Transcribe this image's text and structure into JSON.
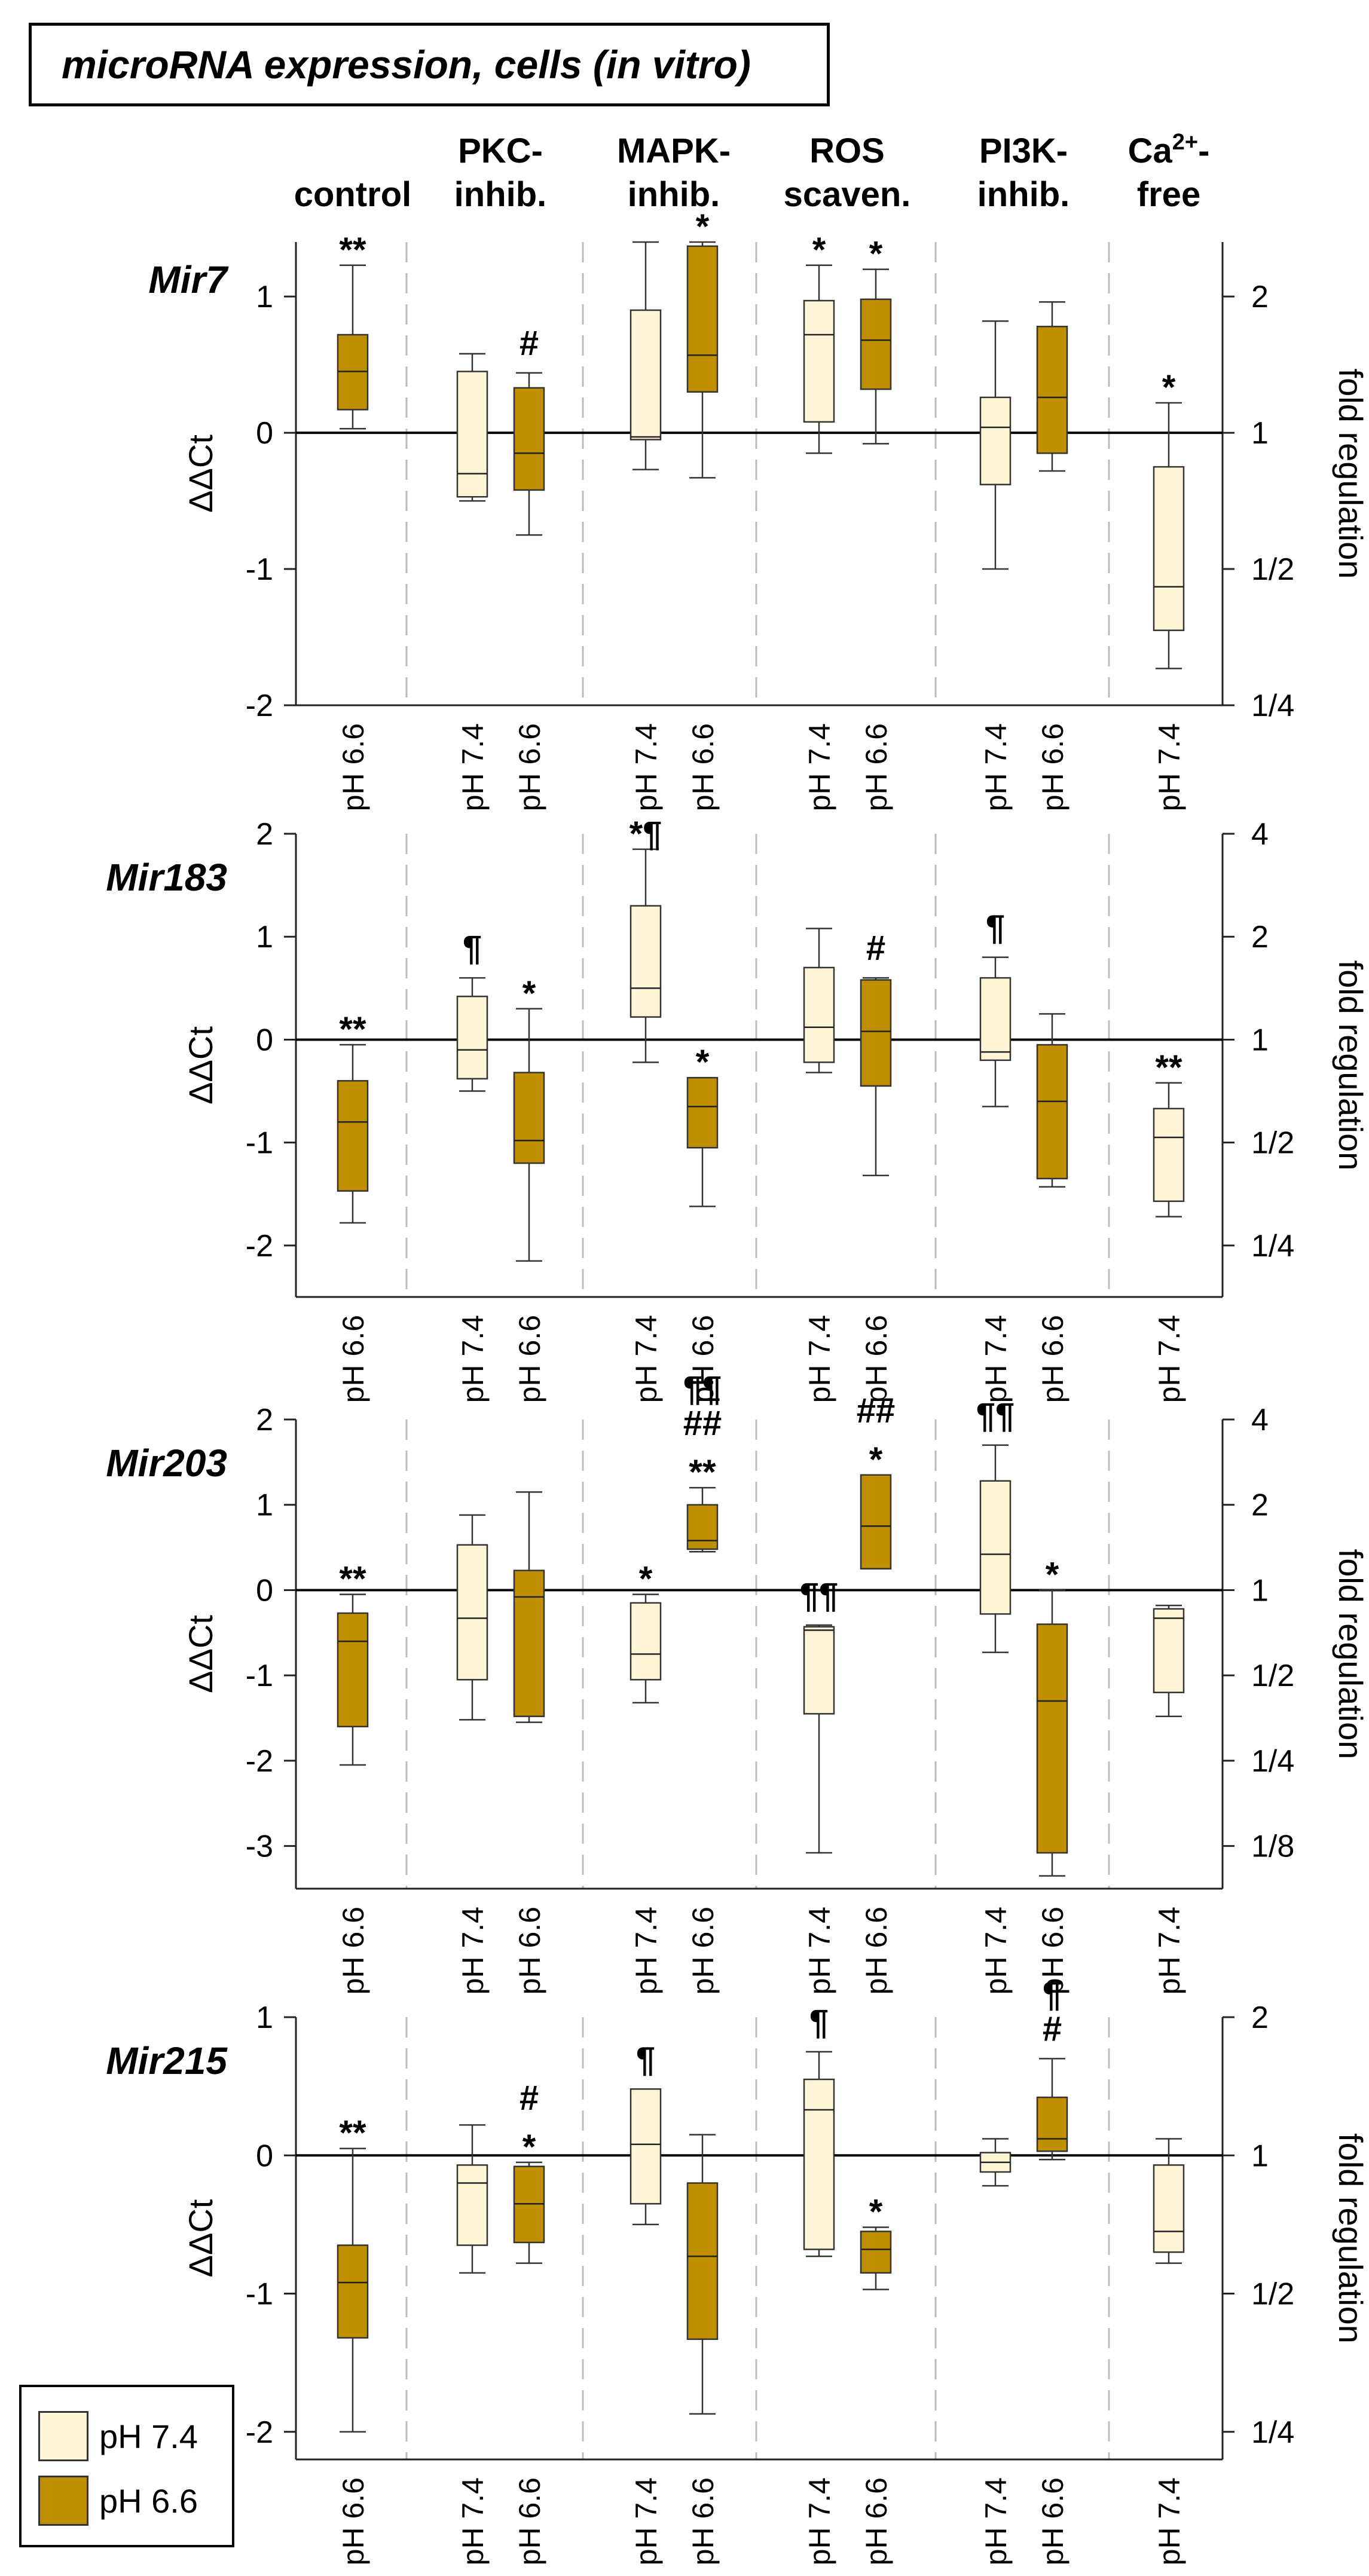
{
  "title": "microRNA expression, cells (in vitro)",
  "groups": [
    {
      "label": [
        "control"
      ]
    },
    {
      "label": [
        "PKC-",
        "inhib."
      ]
    },
    {
      "label": [
        "MAPK-",
        "inhib."
      ]
    },
    {
      "label": [
        "ROS",
        "scaven."
      ]
    },
    {
      "label": [
        "PI3K-",
        "inhib."
      ]
    },
    {
      "label": [
        "Ca",
        "2+",
        "-",
        "free"
      ]
    }
  ],
  "colors": {
    "ph74": "#FFF5D6",
    "ph66": "#C08F00",
    "grid": "#BBBBBB"
  },
  "legend": [
    {
      "label": "pH 7.4",
      "color": "#FFF5D6"
    },
    {
      "label": "pH 6.6",
      "color": "#C08F00"
    }
  ],
  "chart_data": [
    {
      "type": "box",
      "name": "Mir7",
      "ylabel": "ΔΔCt",
      "y2label": "fold regulation",
      "ylim": [
        -2,
        1.4
      ],
      "yticks": [
        1,
        0,
        -1,
        -2
      ],
      "y2ticks": [
        "2",
        "1",
        "1/2",
        "1/4"
      ],
      "boxes": [
        {
          "group": 0,
          "ph": "pH 6.6",
          "min": 0.03,
          "q1": 0.17,
          "median": 0.45,
          "q3": 0.72,
          "max": 1.23,
          "marks": [
            "**"
          ]
        },
        {
          "group": 1,
          "ph": "pH 7.4",
          "min": -0.5,
          "q1": -0.47,
          "median": -0.3,
          "q3": 0.45,
          "max": 0.58,
          "marks": []
        },
        {
          "group": 1,
          "ph": "pH 6.6",
          "min": -0.75,
          "q1": -0.42,
          "median": -0.15,
          "q3": 0.33,
          "max": 0.44,
          "marks": [
            "#"
          ]
        },
        {
          "group": 2,
          "ph": "pH 7.4",
          "min": -0.27,
          "q1": -0.05,
          "median": -0.03,
          "q3": 0.9,
          "max": 1.4,
          "marks": []
        },
        {
          "group": 2,
          "ph": "pH 6.6",
          "min": -0.33,
          "q1": 0.3,
          "median": 0.57,
          "q3": 1.37,
          "max": 1.4,
          "marks": [
            "*"
          ]
        },
        {
          "group": 3,
          "ph": "pH 7.4",
          "min": -0.15,
          "q1": 0.08,
          "median": 0.72,
          "q3": 0.97,
          "max": 1.23,
          "marks": [
            "*"
          ]
        },
        {
          "group": 3,
          "ph": "pH 6.6",
          "min": -0.08,
          "q1": 0.32,
          "median": 0.68,
          "q3": 0.98,
          "max": 1.2,
          "marks": [
            "*"
          ]
        },
        {
          "group": 4,
          "ph": "pH 7.4",
          "min": -1.0,
          "q1": -0.38,
          "median": 0.04,
          "q3": 0.26,
          "max": 0.82,
          "marks": []
        },
        {
          "group": 4,
          "ph": "pH 6.6",
          "min": -0.28,
          "q1": -0.15,
          "median": 0.26,
          "q3": 0.78,
          "max": 0.96,
          "marks": []
        },
        {
          "group": 5,
          "ph": "pH 7.4",
          "min": -1.73,
          "q1": -1.45,
          "median": -1.13,
          "q3": -0.25,
          "max": 0.22,
          "marks": [
            "*"
          ]
        }
      ],
      "xticklabels": [
        "pH 6.6",
        "pH 7.4",
        "pH 6.6",
        "pH 7.4",
        "pH 6.6",
        "pH 7.4",
        "pH 6.6",
        "pH 7.4",
        "pH 6.6",
        "pH 7.4"
      ]
    },
    {
      "type": "box",
      "name": "Mir183",
      "ylabel": "ΔΔCt",
      "y2label": "fold regulation",
      "ylim": [
        -2.5,
        2
      ],
      "yticks": [
        2,
        1,
        0,
        -1,
        -2
      ],
      "y2ticks": [
        "4",
        "2",
        "1",
        "1/2",
        "1/4"
      ],
      "boxes": [
        {
          "group": 0,
          "ph": "pH 6.6",
          "min": -1.78,
          "q1": -1.47,
          "median": -0.8,
          "q3": -0.4,
          "max": -0.05,
          "marks": [
            "**"
          ]
        },
        {
          "group": 1,
          "ph": "pH 7.4",
          "min": -0.5,
          "q1": -0.38,
          "median": -0.1,
          "q3": 0.42,
          "max": 0.6,
          "marks": [
            "¶"
          ]
        },
        {
          "group": 1,
          "ph": "pH 6.6",
          "min": -2.15,
          "q1": -1.2,
          "median": -0.98,
          "q3": -0.32,
          "max": 0.3,
          "marks": [
            "*"
          ]
        },
        {
          "group": 2,
          "ph": "pH 7.4",
          "min": -0.22,
          "q1": 0.22,
          "median": 0.5,
          "q3": 1.3,
          "max": 1.85,
          "marks": [
            "*¶"
          ]
        },
        {
          "group": 2,
          "ph": "pH 6.6",
          "min": -1.62,
          "q1": -1.05,
          "median": -0.65,
          "q3": -0.37,
          "max": -0.37,
          "marks": [
            "*"
          ]
        },
        {
          "group": 3,
          "ph": "pH 7.4",
          "min": -0.32,
          "q1": -0.22,
          "median": 0.12,
          "q3": 0.7,
          "max": 1.08,
          "marks": []
        },
        {
          "group": 3,
          "ph": "pH 6.6",
          "min": -1.32,
          "q1": -0.45,
          "median": 0.08,
          "q3": 0.58,
          "max": 0.6,
          "marks": [
            "#"
          ]
        },
        {
          "group": 4,
          "ph": "pH 7.4",
          "min": -0.65,
          "q1": -0.2,
          "median": -0.12,
          "q3": 0.6,
          "max": 0.8,
          "marks": [
            "¶"
          ]
        },
        {
          "group": 4,
          "ph": "pH 6.6",
          "min": -1.43,
          "q1": -1.35,
          "median": -0.6,
          "q3": -0.05,
          "max": 0.25,
          "marks": []
        },
        {
          "group": 5,
          "ph": "pH 7.4",
          "min": -1.72,
          "q1": -1.57,
          "median": -0.95,
          "q3": -0.67,
          "max": -0.42,
          "marks": [
            "**"
          ]
        }
      ],
      "xticklabels": [
        "pH 6.6",
        "pH 7.4",
        "pH 6.6",
        "pH 7.4",
        "pH 6.6",
        "pH 7.4",
        "pH 6.6",
        "pH 7.4",
        "pH 6.6",
        "pH 7.4"
      ]
    },
    {
      "type": "box",
      "name": "Mir203",
      "ylabel": "ΔΔCt",
      "y2label": "fold regulation",
      "ylim": [
        -3.5,
        2
      ],
      "yticks": [
        2,
        1,
        0,
        -1,
        -2,
        -3
      ],
      "y2ticks": [
        "4",
        "2",
        "1",
        "1/2",
        "1/4",
        "1/8"
      ],
      "boxes": [
        {
          "group": 0,
          "ph": "pH 6.6",
          "min": -2.05,
          "q1": -1.6,
          "median": -0.6,
          "q3": -0.27,
          "max": -0.05,
          "marks": [
            "**"
          ]
        },
        {
          "group": 1,
          "ph": "pH 7.4",
          "min": -1.52,
          "q1": -1.05,
          "median": -0.33,
          "q3": 0.53,
          "max": 0.88,
          "marks": []
        },
        {
          "group": 1,
          "ph": "pH 6.6",
          "min": -1.55,
          "q1": -1.48,
          "median": -0.08,
          "q3": 0.23,
          "max": 1.15,
          "marks": []
        },
        {
          "group": 2,
          "ph": "pH 7.4",
          "min": -1.32,
          "q1": -1.05,
          "median": -0.75,
          "q3": -0.15,
          "max": -0.05,
          "marks": [
            "*"
          ]
        },
        {
          "group": 2,
          "ph": "pH 6.6",
          "min": 0.45,
          "q1": 0.48,
          "median": 0.58,
          "q3": 1.0,
          "max": 1.2,
          "marks": [
            "**",
            "##",
            "¶¶"
          ]
        },
        {
          "group": 3,
          "ph": "pH 7.4",
          "min": -3.08,
          "q1": -1.45,
          "median": -0.47,
          "q3": -0.43,
          "max": -0.41,
          "marks": [
            "¶¶"
          ]
        },
        {
          "group": 3,
          "ph": "pH 6.6",
          "min": 0.25,
          "q1": 0.25,
          "median": 0.75,
          "q3": 1.35,
          "max": 1.35,
          "marks": [
            "*",
            "##"
          ]
        },
        {
          "group": 4,
          "ph": "pH 7.4",
          "min": -0.73,
          "q1": -0.28,
          "median": 0.42,
          "q3": 1.28,
          "max": 1.7,
          "marks": [
            "¶¶"
          ]
        },
        {
          "group": 4,
          "ph": "pH 6.6",
          "min": -3.35,
          "q1": -3.08,
          "median": -1.3,
          "q3": -0.4,
          "max": 0.0,
          "marks": [
            "*"
          ]
        },
        {
          "group": 5,
          "ph": "pH 7.4",
          "min": -1.48,
          "q1": -1.2,
          "median": -0.33,
          "q3": -0.22,
          "max": -0.18,
          "marks": []
        }
      ],
      "xticklabels": [
        "pH 6.6",
        "pH 7.4",
        "pH 6.6",
        "pH 7.4",
        "pH 6.6",
        "pH 7.4",
        "pH 6.6",
        "pH 7.4",
        "pH 6.6",
        "pH 7.4"
      ]
    },
    {
      "type": "box",
      "name": "Mir215",
      "ylabel": "ΔΔCt",
      "y2label": "fold regulation",
      "ylim": [
        -2.2,
        1
      ],
      "yticks": [
        1,
        0,
        -1,
        -2
      ],
      "y2ticks": [
        "2",
        "1",
        "1/2",
        "1/4"
      ],
      "boxes": [
        {
          "group": 0,
          "ph": "pH 6.6",
          "min": -2.0,
          "q1": -1.32,
          "median": -0.92,
          "q3": -0.65,
          "max": 0.05,
          "marks": [
            "**"
          ]
        },
        {
          "group": 1,
          "ph": "pH 7.4",
          "min": -0.85,
          "q1": -0.65,
          "median": -0.2,
          "q3": -0.07,
          "max": 0.22,
          "marks": []
        },
        {
          "group": 1,
          "ph": "pH 6.6",
          "min": -0.78,
          "q1": -0.63,
          "median": -0.35,
          "q3": -0.08,
          "max": -0.05,
          "marks": [
            "*",
            "#"
          ]
        },
        {
          "group": 2,
          "ph": "pH 7.4",
          "min": -0.5,
          "q1": -0.35,
          "median": 0.08,
          "q3": 0.48,
          "max": 0.48,
          "marks": [
            "¶"
          ]
        },
        {
          "group": 2,
          "ph": "pH 6.6",
          "min": -1.87,
          "q1": -1.33,
          "median": -0.73,
          "q3": -0.2,
          "max": 0.15,
          "marks": []
        },
        {
          "group": 3,
          "ph": "pH 7.4",
          "min": -0.73,
          "q1": -0.68,
          "median": 0.33,
          "q3": 0.55,
          "max": 0.75,
          "marks": [
            "¶"
          ]
        },
        {
          "group": 3,
          "ph": "pH 6.6",
          "min": -0.97,
          "q1": -0.85,
          "median": -0.68,
          "q3": -0.55,
          "max": -0.52,
          "marks": [
            "*"
          ]
        },
        {
          "group": 4,
          "ph": "pH 7.4",
          "min": -0.22,
          "q1": -0.12,
          "median": -0.05,
          "q3": 0.02,
          "max": 0.12,
          "marks": []
        },
        {
          "group": 4,
          "ph": "pH 6.6",
          "min": -0.03,
          "q1": 0.03,
          "median": 0.12,
          "q3": 0.42,
          "max": 0.7,
          "marks": [
            "#",
            "¶"
          ]
        },
        {
          "group": 5,
          "ph": "pH 7.4",
          "min": -0.78,
          "q1": -0.7,
          "median": -0.55,
          "q3": -0.07,
          "max": 0.12,
          "marks": []
        }
      ],
      "xticklabels": [
        "pH 6.6",
        "pH 7.4",
        "pH 6.6",
        "pH 7.4",
        "pH 6.6",
        "pH 7.4",
        "pH 6.6",
        "pH 7.4",
        "pH 6.6",
        "pH 7.4"
      ]
    }
  ]
}
